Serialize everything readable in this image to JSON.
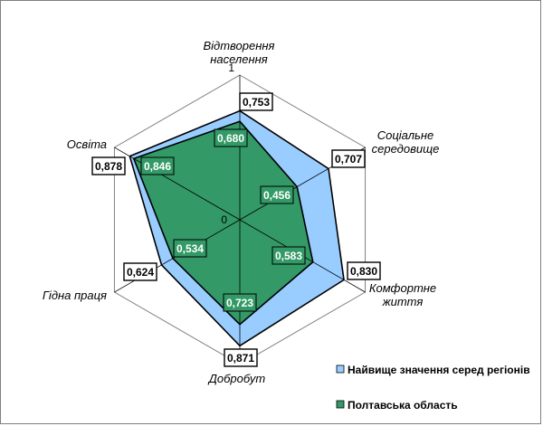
{
  "chart_data": {
    "type": "radar",
    "categories": [
      [
        "Відтворення",
        "населення"
      ],
      [
        "Соціальне",
        "середовище"
      ],
      [
        "Комфортне",
        "життя"
      ],
      [
        "Добробут"
      ],
      [
        "Гідна праця"
      ],
      [
        "Освіта"
      ]
    ],
    "series": [
      {
        "name": "Найвище значення серед регіонів",
        "values": [
          0.753,
          0.707,
          0.83,
          0.871,
          0.624,
          0.878
        ],
        "labels": [
          "0,753",
          "0,707",
          "0,830",
          "0,871",
          "0,624",
          "0,878"
        ]
      },
      {
        "name": "Полтавська область",
        "values": [
          0.68,
          0.456,
          0.583,
          0.723,
          0.534,
          0.846
        ],
        "labels": [
          "0,680",
          "0,456",
          "0,583",
          "0,723",
          "0,534",
          "0,846"
        ]
      }
    ],
    "range": [
      0,
      1
    ],
    "ticks": [
      "0",
      "1"
    ],
    "grid": true,
    "legend_position": "bottom-right"
  },
  "colors": {
    "best_fill": "#99ccff",
    "region_fill": "#339966",
    "region_label_bg": "#339966",
    "outline": "#000000",
    "grid": "#808080"
  }
}
